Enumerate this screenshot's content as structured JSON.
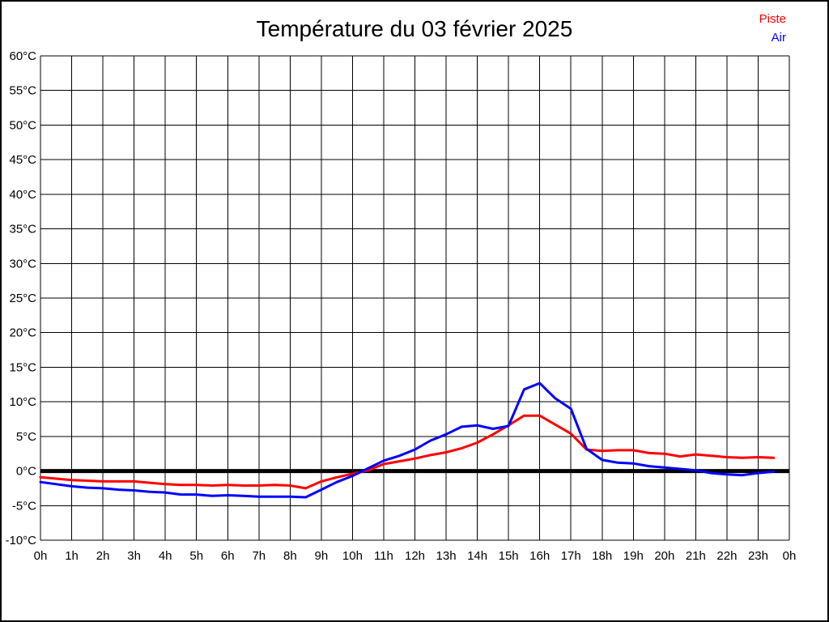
{
  "chart_data": {
    "type": "line",
    "title": "Température du 03 février 2025",
    "xlabel": "",
    "ylabel": "",
    "xlim": [
      0,
      24
    ],
    "ylim": [
      -10,
      60
    ],
    "grid": true,
    "zero_line": true,
    "legend_position": "top-right",
    "x_tick_labels": [
      "0h",
      "1h",
      "2h",
      "3h",
      "4h",
      "5h",
      "6h",
      "7h",
      "8h",
      "9h",
      "10h",
      "11h",
      "12h",
      "13h",
      "14h",
      "15h",
      "16h",
      "17h",
      "18h",
      "19h",
      "20h",
      "21h",
      "22h",
      "23h",
      "0h"
    ],
    "y_tick_values": [
      60,
      55,
      50,
      45,
      40,
      35,
      30,
      25,
      20,
      15,
      10,
      5,
      0,
      -5,
      -10
    ],
    "y_tick_labels": [
      "60°C",
      "55°C",
      "50°C",
      "45°C",
      "40°C",
      "35°C",
      "30°C",
      "25°C",
      "20°C",
      "15°C",
      "10°C",
      "5°C",
      "0°C",
      "-5°C",
      "-10°C"
    ],
    "x": [
      0,
      0.5,
      1,
      1.5,
      2,
      2.5,
      3,
      3.5,
      4,
      4.5,
      5,
      5.5,
      6,
      6.5,
      7,
      7.5,
      8,
      8.5,
      9,
      9.5,
      10,
      10.5,
      11,
      11.5,
      12,
      12.5,
      13,
      13.5,
      14,
      14.5,
      15,
      15.5,
      16,
      16.5,
      17,
      17.5,
      18,
      18.5,
      19,
      19.5,
      20,
      20.5,
      21,
      21.5,
      22,
      22.5,
      23,
      23.5
    ],
    "series": [
      {
        "name": "Piste",
        "color": "#ff0000",
        "values": [
          -0.9,
          -1.1,
          -1.3,
          -1.4,
          -1.5,
          -1.5,
          -1.5,
          -1.7,
          -1.9,
          -2.0,
          -2.0,
          -2.1,
          -2.0,
          -2.1,
          -2.1,
          -2.0,
          -2.1,
          -2.5,
          -1.5,
          -0.9,
          -0.4,
          0.1,
          1.0,
          1.4,
          1.8,
          2.3,
          2.7,
          3.3,
          4.1,
          5.3,
          6.6,
          8.0,
          8.0,
          6.7,
          5.4,
          3.1,
          2.9,
          3.0,
          3.0,
          2.6,
          2.5,
          2.1,
          2.4,
          2.2,
          2.0,
          1.9,
          2.0,
          1.9
        ]
      },
      {
        "name": "Air",
        "color": "#0000ff",
        "values": [
          -1.6,
          -1.9,
          -2.2,
          -2.4,
          -2.5,
          -2.7,
          -2.8,
          -3.0,
          -3.1,
          -3.4,
          -3.4,
          -3.6,
          -3.5,
          -3.6,
          -3.7,
          -3.7,
          -3.7,
          -3.8,
          -2.7,
          -1.6,
          -0.7,
          0.4,
          1.5,
          2.2,
          3.1,
          4.4,
          5.3,
          6.4,
          6.6,
          6.1,
          6.5,
          11.8,
          12.7,
          10.5,
          9.0,
          3.2,
          1.6,
          1.2,
          1.1,
          0.7,
          0.5,
          0.3,
          0.1,
          -0.3,
          -0.5,
          -0.6,
          -0.3,
          -0.1
        ]
      }
    ],
    "colors": {
      "axis": "#000000",
      "grid": "#000000",
      "zero_line": "#000000",
      "background": "#ffffff"
    }
  }
}
